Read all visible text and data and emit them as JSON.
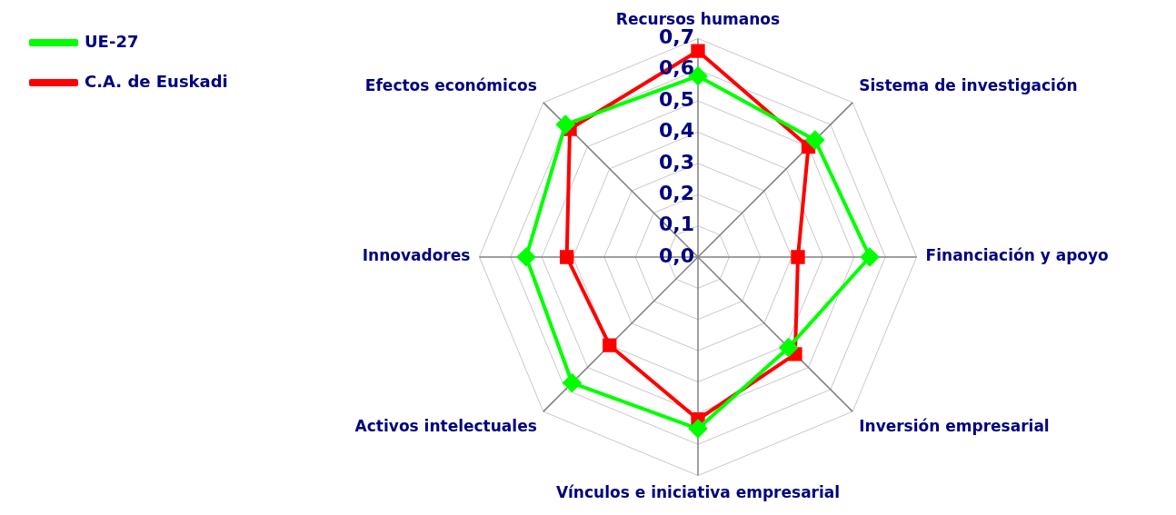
{
  "chart_data": {
    "type": "radar",
    "categories": [
      "Recursos humanos",
      "Sistema de investigación",
      "Financiación y apoyo",
      "Inversión empresarial",
      "Vínculos e iniciativa empresarial",
      "Activos intelectuales",
      "Innovadores",
      "Efectos económicos"
    ],
    "series": [
      {
        "name": "UE-27",
        "color": "#00ff00",
        "marker": "diamond",
        "values": [
          0.58,
          0.53,
          0.55,
          0.41,
          0.55,
          0.57,
          0.55,
          0.6
        ]
      },
      {
        "name": "C.A. de Euskadi",
        "color": "#ff0000",
        "marker": "square",
        "values": [
          0.66,
          0.5,
          0.32,
          0.44,
          0.52,
          0.4,
          0.42,
          0.58
        ]
      }
    ],
    "ylim": [
      0,
      0.7
    ],
    "yticks": [
      {
        "value": 0,
        "label": "0,0"
      },
      {
        "value": 0.1,
        "label": "0,1"
      },
      {
        "value": 0.2,
        "label": "0,2"
      },
      {
        "value": 0.3,
        "label": "0,3"
      },
      {
        "value": 0.4,
        "label": "0,4"
      },
      {
        "value": 0.5,
        "label": "0,5"
      },
      {
        "value": 0.6,
        "label": "0,6"
      },
      {
        "value": 0.7,
        "label": "0,7"
      }
    ],
    "grid": true,
    "legend": "top left"
  }
}
